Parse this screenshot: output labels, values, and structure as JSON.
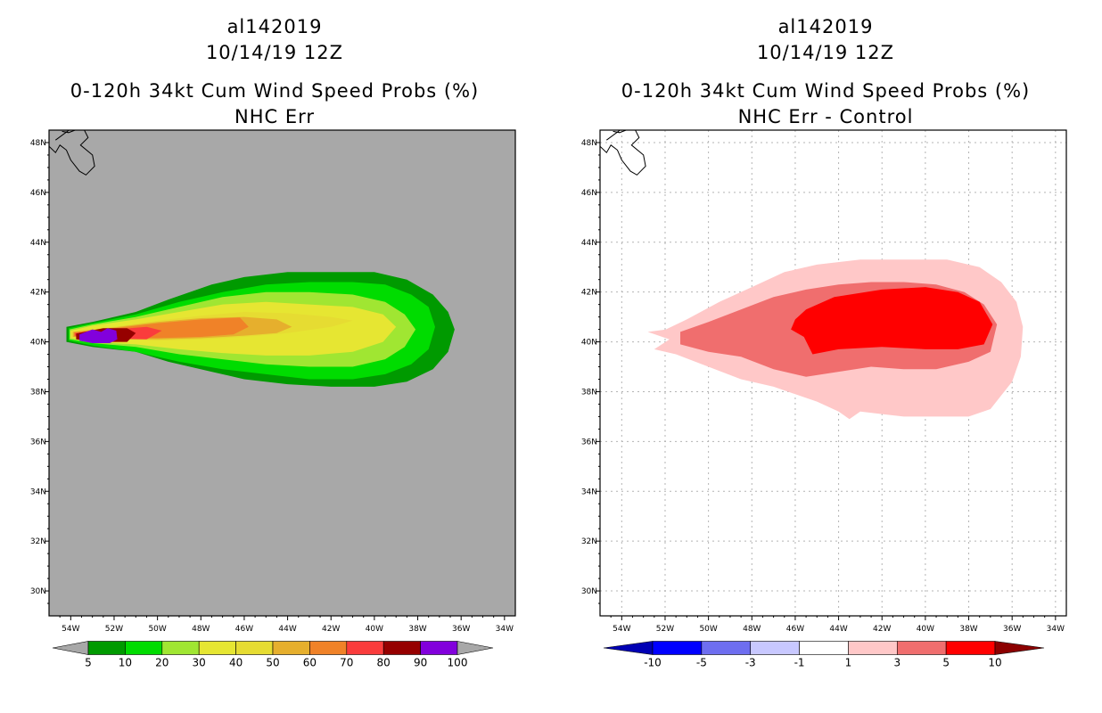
{
  "chart_data": [
    {
      "type": "filled-contour map",
      "title_lines": [
        "al142019",
        "10/14/19 12Z",
        "0-120h 34kt Cum Wind Speed Probs (%)",
        "NHC Err"
      ],
      "lon_ticks": [
        "54W",
        "52W",
        "50W",
        "48W",
        "46W",
        "44W",
        "42W",
        "40W",
        "38W",
        "36W",
        "34W"
      ],
      "lat_ticks": [
        "48N",
        "46N",
        "44N",
        "42N",
        "40N",
        "38N",
        "36N",
        "34N",
        "32N",
        "30N"
      ],
      "lon_range": [
        -55,
        -33.5
      ],
      "lat_range": [
        29,
        48.5
      ],
      "background_color": "#a8a8a8",
      "colorbar_labels": [
        "5",
        "10",
        "20",
        "30",
        "40",
        "50",
        "60",
        "70",
        "80",
        "90",
        "100"
      ],
      "colorbar_colors": [
        "#a8a8a8",
        "#009a00",
        "#00dc00",
        "#a0e632",
        "#e6e632",
        "#e6dc32",
        "#e6af2d",
        "#f08228",
        "#fa3c3c",
        "#960000",
        "#8200dc",
        "#a8a8a8"
      ],
      "contours": [
        {
          "level": 5,
          "color": "#009a00",
          "lon": [
            -54.2,
            -53,
            -51,
            -49.5,
            -47.5,
            -46,
            -44,
            -42,
            -40,
            -38.5,
            -37.3,
            -36.6,
            -36.3,
            -36.6,
            -37.3,
            -38.5,
            -40,
            -42,
            -44,
            -46,
            -47.5,
            -49.5,
            -51,
            -53,
            -54.2
          ],
          "lat": [
            40.6,
            40.8,
            41.2,
            41.7,
            42.3,
            42.6,
            42.8,
            42.8,
            42.8,
            42.5,
            41.9,
            41.2,
            40.5,
            39.6,
            38.9,
            38.4,
            38.2,
            38.2,
            38.3,
            38.5,
            38.8,
            39.2,
            39.6,
            39.8,
            40.0
          ]
        },
        {
          "level": 10,
          "color": "#00dc00",
          "lon": [
            -54.1,
            -53,
            -51,
            -49,
            -47,
            -45,
            -43,
            -41,
            -39.5,
            -38.3,
            -37.5,
            -37.2,
            -37.5,
            -38.3,
            -39.5,
            -41,
            -43,
            -45,
            -47,
            -49,
            -51,
            -53,
            -54.1
          ],
          "lat": [
            40.55,
            40.75,
            41.1,
            41.6,
            42.0,
            42.3,
            42.4,
            42.4,
            42.3,
            41.9,
            41.4,
            40.6,
            39.7,
            39.1,
            38.7,
            38.5,
            38.5,
            38.7,
            38.9,
            39.2,
            39.6,
            39.85,
            40.05
          ]
        },
        {
          "level": 20,
          "color": "#a0e632",
          "lon": [
            -54.05,
            -53,
            -51,
            -49,
            -47,
            -45,
            -43,
            -41,
            -39.5,
            -38.6,
            -38.1,
            -38.6,
            -39.5,
            -41,
            -43,
            -45,
            -47,
            -49,
            -51,
            -53,
            -54.05
          ],
          "lat": [
            40.5,
            40.7,
            41.0,
            41.4,
            41.8,
            42.0,
            42.0,
            41.9,
            41.6,
            41.1,
            40.5,
            39.8,
            39.3,
            39.0,
            39.0,
            39.1,
            39.3,
            39.5,
            39.8,
            39.95,
            40.1
          ]
        },
        {
          "level": 30,
          "color": "#e6e632",
          "lon": [
            -54.0,
            -53,
            -51,
            -49,
            -47,
            -45,
            -43,
            -41,
            -39.6,
            -39.0,
            -39.6,
            -41,
            -43,
            -45,
            -47,
            -49,
            -51,
            -53,
            -54.0
          ],
          "lat": [
            40.45,
            40.65,
            40.9,
            41.2,
            41.5,
            41.6,
            41.5,
            41.4,
            41.1,
            40.6,
            40.0,
            39.6,
            39.45,
            39.45,
            39.55,
            39.7,
            39.9,
            40.0,
            40.15
          ]
        },
        {
          "level": 40,
          "color": "#e6dc32",
          "lon": [
            -53.95,
            -52,
            -50,
            -48,
            -46,
            -44,
            -42,
            -41,
            -42,
            -44,
            -46,
            -48,
            -50,
            -52,
            -53.95
          ],
          "lat": [
            40.42,
            40.6,
            40.85,
            41.05,
            41.2,
            41.15,
            41.0,
            40.85,
            40.6,
            40.35,
            40.2,
            40.1,
            40.05,
            40.08,
            40.18
          ]
        },
        {
          "level": 50,
          "color": "#e6af2d",
          "lon": [
            -53.9,
            -52,
            -50,
            -48,
            -46,
            -44.5,
            -43.8,
            -44.5,
            -46,
            -48,
            -50,
            -52,
            -53.9
          ],
          "lat": [
            40.4,
            40.58,
            40.8,
            40.95,
            41.0,
            40.9,
            40.6,
            40.35,
            40.25,
            40.15,
            40.1,
            40.12,
            40.2
          ]
        },
        {
          "level": 60,
          "color": "#f08228",
          "lon": [
            -53.85,
            -52,
            -50,
            -48,
            -46.2,
            -45.8,
            -46.5,
            -48,
            -50,
            -52,
            -53.85
          ],
          "lat": [
            40.38,
            40.55,
            40.75,
            40.9,
            40.98,
            40.6,
            40.3,
            40.2,
            40.15,
            40.15,
            40.22
          ]
        },
        {
          "level": 70,
          "color": "#fa3c3c",
          "lon": [
            -53.8,
            -52,
            -50.5,
            -49.8,
            -50.5,
            -52,
            -53.8
          ],
          "lat": [
            40.35,
            40.5,
            40.6,
            40.45,
            40.1,
            40.12,
            40.25
          ]
        },
        {
          "level": 80,
          "color": "#960000",
          "lon": [
            -53.75,
            -52.5,
            -51.4,
            -51.0,
            -51.4,
            -52.5,
            -53.75
          ],
          "lat": [
            40.33,
            40.55,
            40.55,
            40.35,
            40.0,
            40.0,
            40.1
          ]
        },
        {
          "level": 90,
          "color": "#8200dc",
          "lon": [
            -53.6,
            -53.0,
            -52.6,
            -52.3,
            -51.9,
            -51.85,
            -52.2,
            -53.0,
            -53.6
          ],
          "lat": [
            40.3,
            40.5,
            40.4,
            40.55,
            40.45,
            40.1,
            39.95,
            39.95,
            40.05
          ]
        }
      ]
    },
    {
      "type": "filled-contour map",
      "title_lines": [
        "al142019",
        "10/14/19 12Z",
        "0-120h 34kt Cum Wind Speed Probs (%)",
        "NHC Err - Control"
      ],
      "lon_ticks": [
        "54W",
        "52W",
        "50W",
        "48W",
        "46W",
        "44W",
        "42W",
        "40W",
        "38W",
        "36W",
        "34W"
      ],
      "lat_ticks": [
        "48N",
        "46N",
        "44N",
        "42N",
        "40N",
        "38N",
        "36N",
        "34N",
        "32N",
        "30N"
      ],
      "lon_range": [
        -55,
        -33.5
      ],
      "lat_range": [
        29,
        48.5
      ],
      "background_color": "#ffffff",
      "colorbar_labels": [
        "-10",
        "-5",
        "-3",
        "-1",
        "1",
        "3",
        "5",
        "10"
      ],
      "colorbar_colors": [
        "#0000b4",
        "#0000ff",
        "#6e6ef0",
        "#c8c8ff",
        "#ffffff",
        "#ffc8c8",
        "#f06e6e",
        "#ff0000",
        "#8c0000"
      ],
      "contours": [
        {
          "level": 1,
          "color": "#ffc8c8",
          "lon": [
            -52.2,
            -51,
            -49.5,
            -48,
            -46.5,
            -45,
            -43,
            -41,
            -39,
            -37.5,
            -36.5,
            -35.8,
            -35.5,
            -35.6,
            -36,
            -37,
            -38,
            -39.5,
            -41,
            -42,
            -43,
            -43.5,
            -44,
            -45,
            -47,
            -48.5,
            -50,
            -51.5,
            -52.5,
            -51.8,
            -52.8,
            -51.5
          ],
          "lat": [
            40.4,
            40.9,
            41.6,
            42.2,
            42.8,
            43.1,
            43.3,
            43.3,
            43.3,
            43.0,
            42.4,
            41.6,
            40.6,
            39.4,
            38.4,
            37.3,
            37.0,
            37.0,
            37.0,
            37.1,
            37.2,
            36.9,
            37.2,
            37.6,
            38.2,
            38.5,
            39.0,
            39.5,
            39.7,
            40.1,
            40.4,
            40.55
          ]
        },
        {
          "level": 3,
          "color": "#f06e6e",
          "lon": [
            -51.3,
            -50,
            -48.5,
            -47,
            -45.5,
            -44,
            -42.5,
            -41,
            -39.5,
            -38.2,
            -37.3,
            -36.7,
            -37.0,
            -38,
            -39.5,
            -41,
            -42.5,
            -44,
            -45.5,
            -47,
            -48.5,
            -50,
            -51.3
          ],
          "lat": [
            40.4,
            40.8,
            41.3,
            41.8,
            42.1,
            42.3,
            42.4,
            42.4,
            42.3,
            42.0,
            41.5,
            40.7,
            39.6,
            39.2,
            38.9,
            38.9,
            39.0,
            38.8,
            38.6,
            38.9,
            39.4,
            39.6,
            39.9
          ]
        },
        {
          "level": 5,
          "color": "#ff0000",
          "lon": [
            -46.0,
            -45.5,
            -44.2,
            -42,
            -40,
            -38.5,
            -37.5,
            -36.9,
            -37.3,
            -38.5,
            -40,
            -42,
            -44,
            -45.2,
            -45.6,
            -46.2
          ],
          "lat": [
            40.9,
            41.3,
            41.8,
            42.1,
            42.2,
            42.0,
            41.6,
            40.7,
            39.9,
            39.7,
            39.7,
            39.8,
            39.7,
            39.5,
            40.2,
            40.5
          ]
        }
      ]
    }
  ]
}
